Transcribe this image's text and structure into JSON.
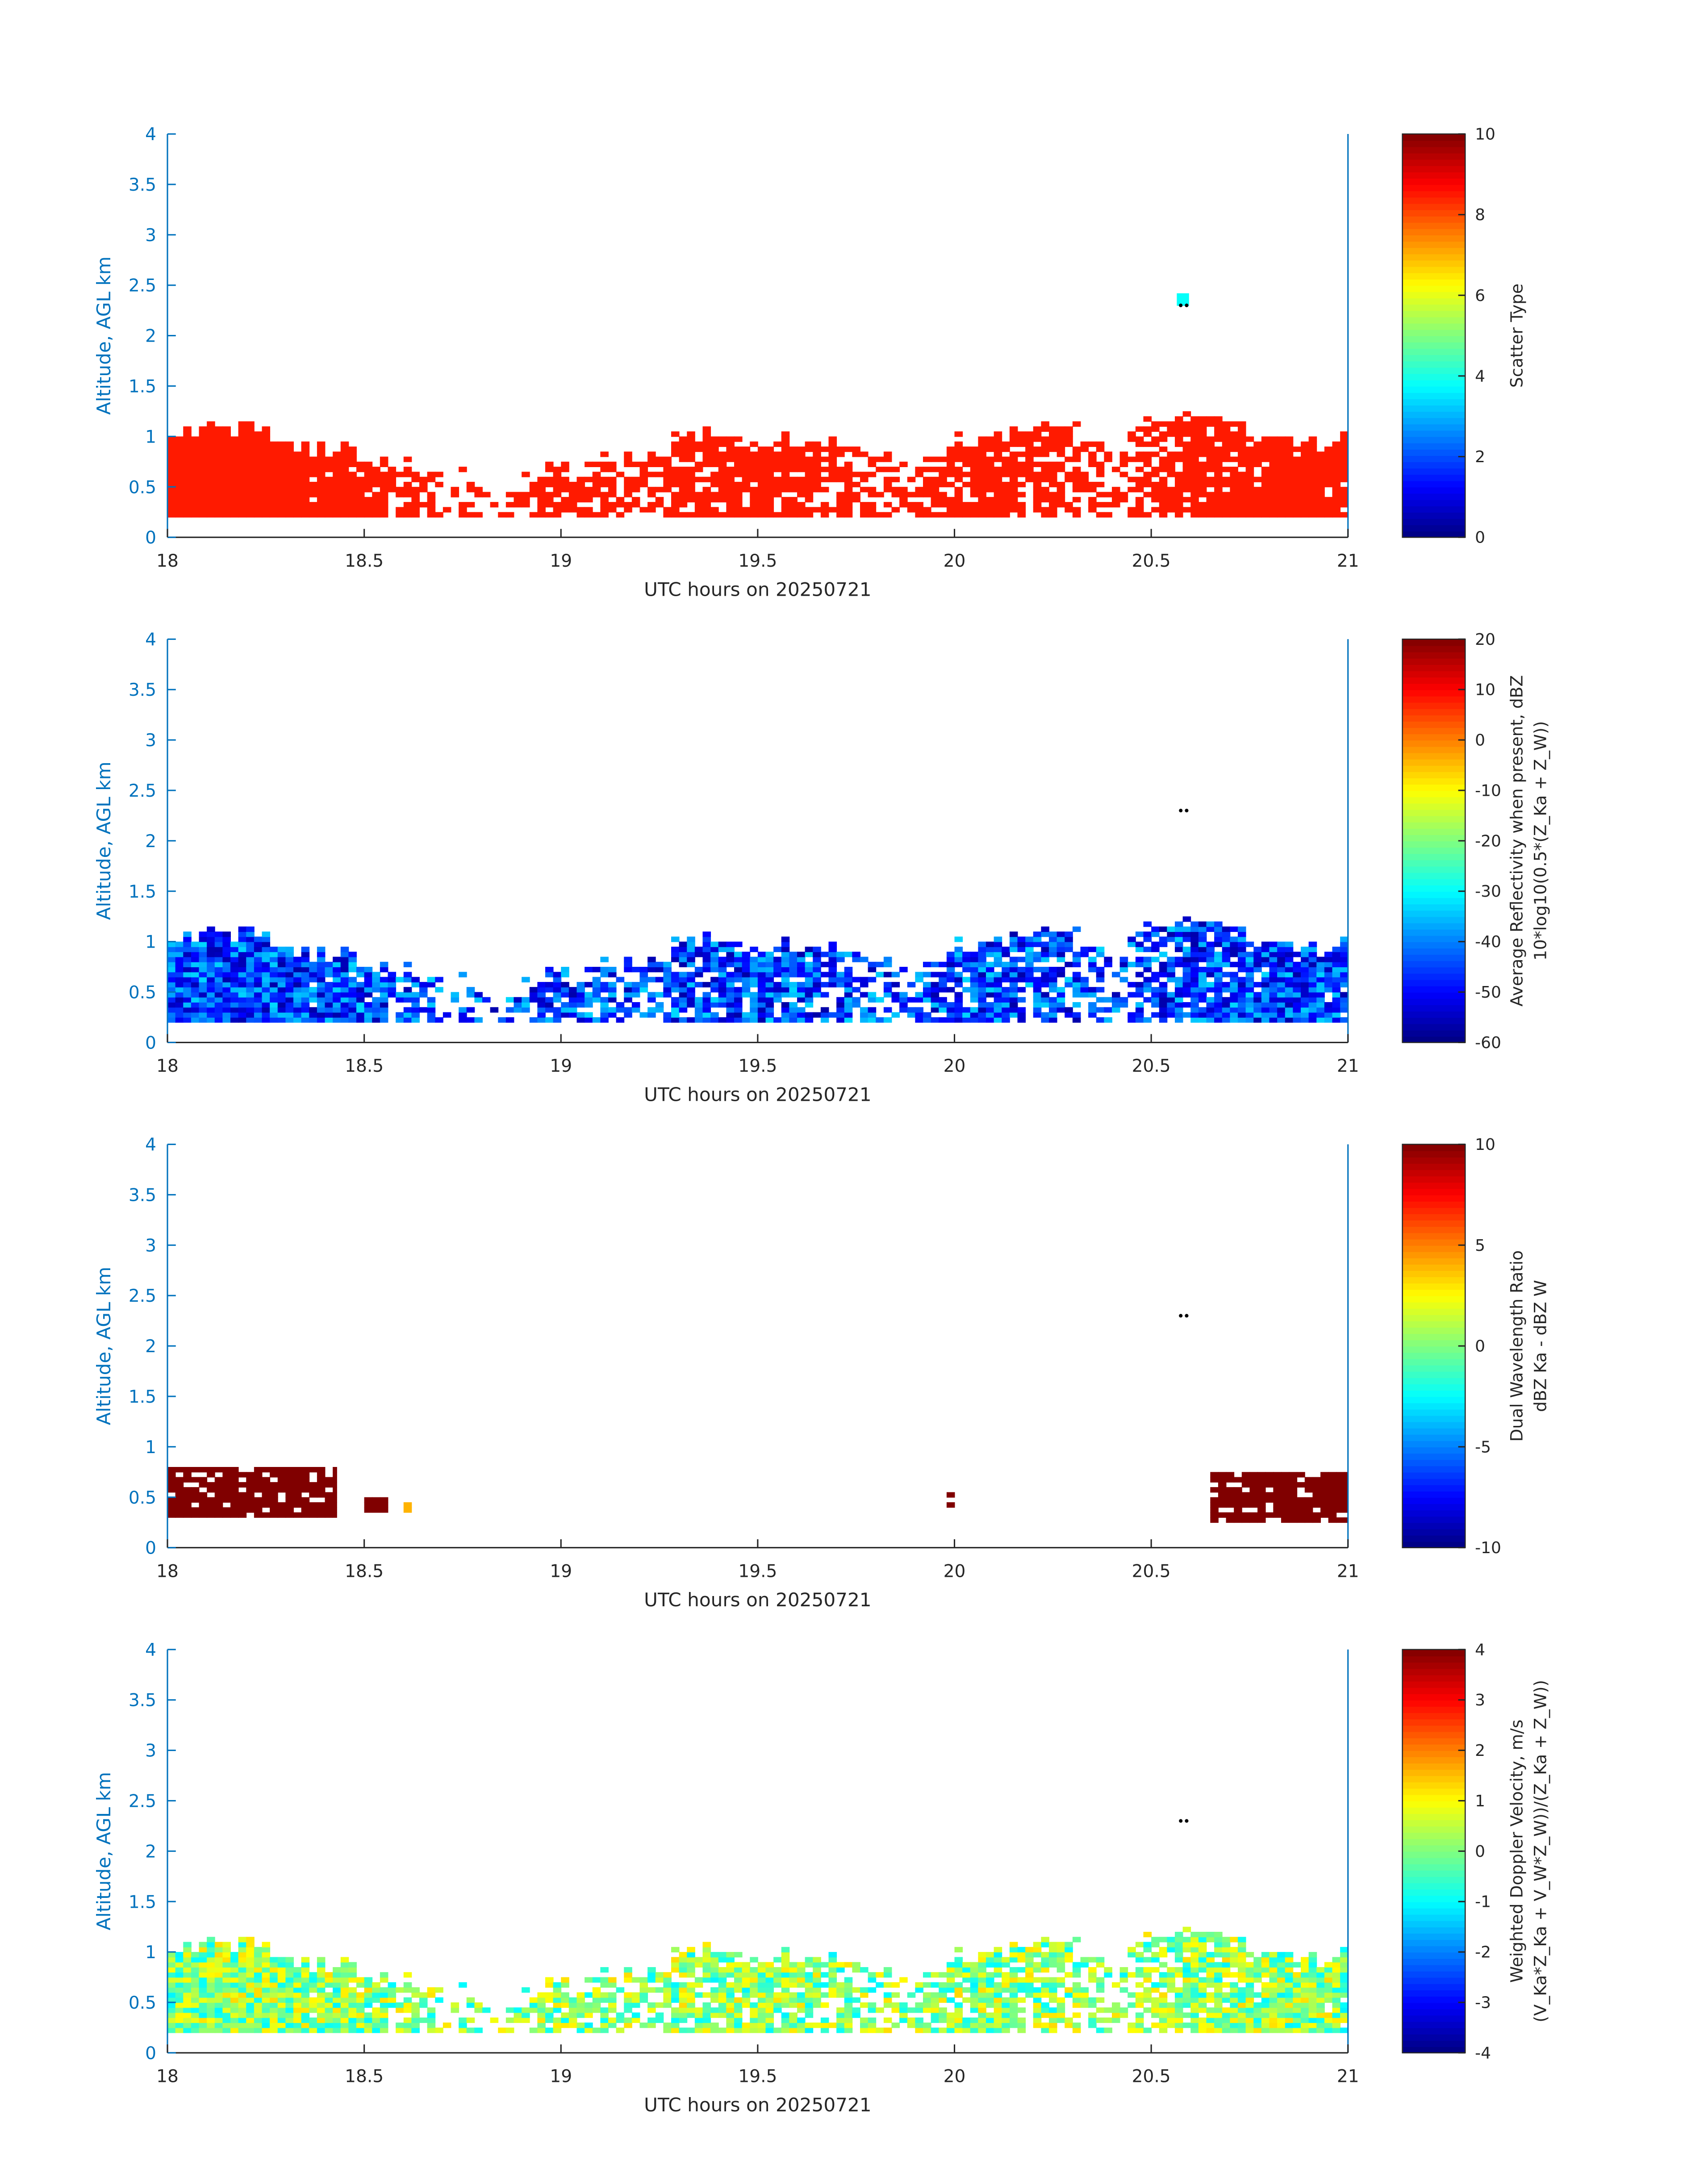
{
  "chart_data": [
    {
      "type": "heatmap",
      "xlabel": "UTC hours on 20250721",
      "ylabel": "Altitude, AGL km",
      "xlim": [
        18,
        21
      ],
      "ylim": [
        0,
        4
      ],
      "xticks": [
        "18",
        "18.5",
        "19",
        "19.5",
        "20",
        "20.5",
        "21"
      ],
      "yticks": [
        "0",
        "0.5",
        "1",
        "1.5",
        "2",
        "2.5",
        "3",
        "3.5",
        "4"
      ],
      "colorbar": {
        "label": [
          "Scatter Type"
        ],
        "clim": [
          0,
          10
        ],
        "ticks": [
          "0",
          "2",
          "4",
          "6",
          "8",
          "10"
        ],
        "colormap": "jet"
      },
      "field": "scatter_type",
      "typical_value": 8.5,
      "spread": 0,
      "extra_cells": [
        {
          "t": 20.58,
          "alt": 2.35,
          "value": 3.8
        }
      ],
      "markers": [
        {
          "t": 20.575,
          "alt": 2.3
        },
        {
          "t": 20.59,
          "alt": 2.3
        }
      ]
    },
    {
      "type": "heatmap",
      "xlabel": "UTC hours on 20250721",
      "ylabel": "Altitude, AGL km",
      "xlim": [
        18,
        21
      ],
      "ylim": [
        0,
        4
      ],
      "xticks": [
        "18",
        "18.5",
        "19",
        "19.5",
        "20",
        "20.5",
        "21"
      ],
      "yticks": [
        "0",
        "0.5",
        "1",
        "1.5",
        "2",
        "2.5",
        "3",
        "3.5",
        "4"
      ],
      "colorbar": {
        "label": [
          "Average Reflectivity when present, dBZ",
          "10*log10(0.5*(Z_Ka + Z_W))"
        ],
        "clim": [
          -60,
          20
        ],
        "ticks": [
          "-60",
          "-50",
          "-40",
          "-30",
          "-20",
          "-10",
          "0",
          "10",
          "20"
        ],
        "colormap": "jet"
      },
      "field": "reflectivity_dBZ",
      "typical_value": -45,
      "spread": 12,
      "extra_cells": [],
      "markers": [
        {
          "t": 20.575,
          "alt": 2.3
        },
        {
          "t": 20.59,
          "alt": 2.3
        }
      ]
    },
    {
      "type": "heatmap",
      "xlabel": "UTC hours on 20250721",
      "ylabel": "Altitude, AGL km",
      "xlim": [
        18,
        21
      ],
      "ylim": [
        0,
        4
      ],
      "xticks": [
        "18",
        "18.5",
        "19",
        "19.5",
        "20",
        "20.5",
        "21"
      ],
      "yticks": [
        "0",
        "0.5",
        "1",
        "1.5",
        "2",
        "2.5",
        "3",
        "3.5",
        "4"
      ],
      "colorbar": {
        "label": [
          "Dual Wavelength Ratio",
          "dBZ Ka - dBZ W"
        ],
        "clim": [
          -10,
          10
        ],
        "ticks": [
          "-10",
          "-5",
          "0",
          "5",
          "10"
        ],
        "colormap": "jet"
      },
      "field": "dual_wavelength_ratio",
      "regions": [
        {
          "t0": 18.0,
          "t1": 18.43,
          "alt0": 0.3,
          "alt1": 0.8,
          "value": 10
        },
        {
          "t0": 18.5,
          "t1": 18.56,
          "alt0": 0.35,
          "alt1": 0.5,
          "value": 10
        },
        {
          "t0": 18.6,
          "t1": 18.62,
          "alt0": 0.35,
          "alt1": 0.45,
          "value": 4
        },
        {
          "t0": 19.98,
          "t1": 20.0,
          "alt0": 0.4,
          "alt1": 0.55,
          "value": 10
        },
        {
          "t0": 20.65,
          "t1": 21.0,
          "alt0": 0.25,
          "alt1": 0.75,
          "value": 10
        }
      ],
      "markers": [
        {
          "t": 20.575,
          "alt": 2.3
        },
        {
          "t": 20.59,
          "alt": 2.3
        }
      ]
    },
    {
      "type": "heatmap",
      "xlabel": "UTC hours on 20250721",
      "ylabel": "Altitude, AGL km",
      "xlim": [
        18,
        21
      ],
      "ylim": [
        0,
        4
      ],
      "xticks": [
        "18",
        "18.5",
        "19",
        "19.5",
        "20",
        "20.5",
        "21"
      ],
      "yticks": [
        "0",
        "0.5",
        "1",
        "1.5",
        "2",
        "2.5",
        "3",
        "3.5",
        "4"
      ],
      "colorbar": {
        "label": [
          "Weighted Doppler Velocity, m/s",
          "(V_Ka*Z_Ka + V_W*Z_W))/(Z_Ka + Z_W))"
        ],
        "clim": [
          -4,
          4
        ],
        "ticks": [
          "-4",
          "-3",
          "-2",
          "-1",
          "0",
          "1",
          "2",
          "3",
          "4"
        ],
        "colormap": "jet"
      },
      "field": "doppler_velocity_ms",
      "typical_value": 0.1,
      "spread": 1.2,
      "extra_cells": [],
      "markers": [
        {
          "t": 20.575,
          "alt": 2.3
        },
        {
          "t": 20.59,
          "alt": 2.3
        }
      ]
    }
  ],
  "cloud_layer": {
    "base_km": 0.2,
    "time_h": [
      18.0,
      18.1,
      18.2,
      18.3,
      18.4,
      18.5,
      18.6,
      18.7,
      18.8,
      18.9,
      19.0,
      19.1,
      19.2,
      19.3,
      19.4,
      19.5,
      19.6,
      19.7,
      19.8,
      19.9,
      20.0,
      20.1,
      20.2,
      20.3,
      20.4,
      20.5,
      20.6,
      20.7,
      20.8,
      20.9,
      21.0
    ],
    "top_km": [
      1.05,
      1.05,
      1.05,
      0.95,
      0.85,
      0.8,
      0.7,
      0.6,
      0.5,
      0.55,
      0.7,
      0.75,
      0.8,
      1.0,
      0.95,
      0.9,
      0.95,
      0.95,
      0.85,
      0.7,
      0.95,
      1.05,
      1.05,
      1.1,
      0.8,
      1.2,
      1.2,
      1.1,
      0.95,
      0.9,
      0.95
    ],
    "coverage": [
      1.0,
      1.0,
      1.0,
      1.0,
      0.95,
      0.9,
      0.7,
      0.3,
      0.3,
      0.45,
      0.8,
      0.7,
      0.55,
      0.75,
      0.85,
      0.9,
      0.75,
      0.7,
      0.55,
      0.6,
      0.8,
      0.8,
      0.7,
      0.55,
      0.45,
      0.6,
      0.9,
      0.95,
      0.95,
      0.95,
      0.95
    ]
  }
}
